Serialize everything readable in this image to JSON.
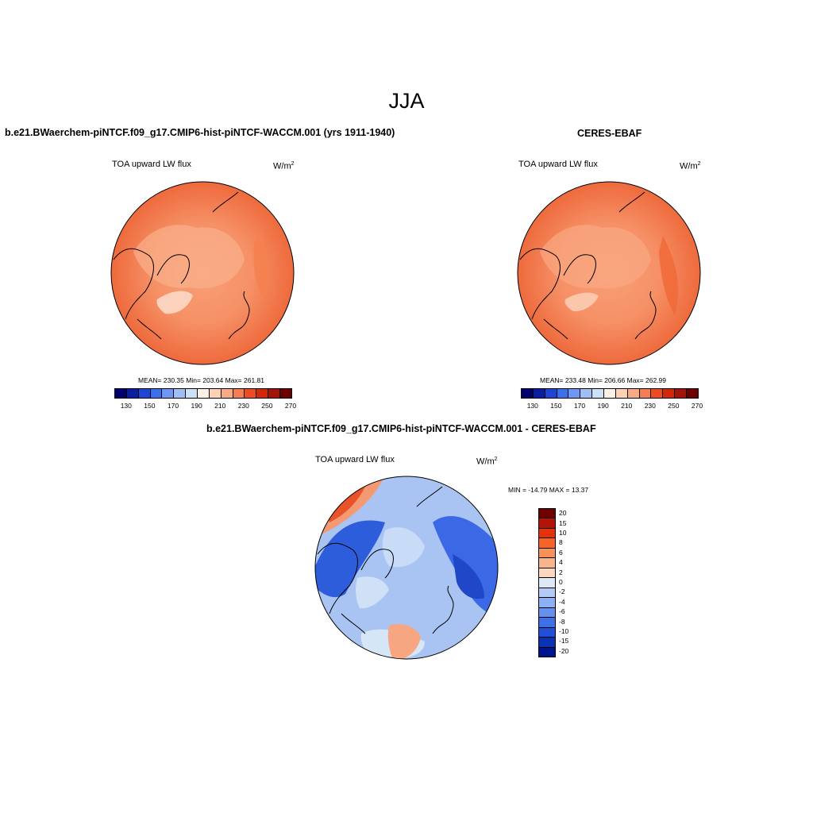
{
  "figure": {
    "title": "JJA",
    "panels": [
      {
        "title": "b.e21.BWaerchem-piNTCF.f09_g17.CMIP6-hist-piNTCF-WACCM.001 (yrs 1911-1940)",
        "variable": "TOA upward LW flux",
        "units": "W/m",
        "units_sup": "2",
        "stats": "MEAN= 230.35  Min= 203.64  Max= 261.81"
      },
      {
        "title": "CERES-EBAF",
        "variable": "TOA upward LW flux",
        "units": "W/m",
        "units_sup": "2",
        "stats": "MEAN= 233.48  Min= 206.66  Max= 262.99"
      },
      {
        "title": "b.e21.BWaerchem-piNTCF.f09_g17.CMIP6-hist-piNTCF-WACCM.001 - CERES-EBAF",
        "variable": "TOA upward LW flux",
        "units": "W/m",
        "units_sup": "2",
        "stats": "MIN = -14.79 MAX =  13.37"
      }
    ],
    "abs_colorbar": {
      "colors": [
        "#00006e",
        "#0a1ea0",
        "#1e46d2",
        "#3c6ef0",
        "#6e96f5",
        "#a0bef5",
        "#cce0fa",
        "#fff0e6",
        "#fcd2b4",
        "#f8aa82",
        "#f57d50",
        "#ed4b23",
        "#d2280a",
        "#a0140a",
        "#6e0000"
      ],
      "labels": [
        "130",
        "150",
        "170",
        "190",
        "210",
        "230",
        "250",
        "270"
      ]
    },
    "diff_colorbar": {
      "colors": [
        "#6e0000",
        "#b41405",
        "#e6320a",
        "#f56428",
        "#f8915a",
        "#fab48c",
        "#fcd6bd",
        "#dce8f5",
        "#b4ccf5",
        "#8cb0f5",
        "#6490f0",
        "#4070e6",
        "#2050d7",
        "#0a32b4",
        "#00148c"
      ],
      "labels": [
        "20",
        "15",
        "10",
        "8",
        "6",
        "4",
        "2",
        "0",
        "-2",
        "-4",
        "-6",
        "-8",
        "-10",
        "-15",
        "-20"
      ]
    }
  }
}
